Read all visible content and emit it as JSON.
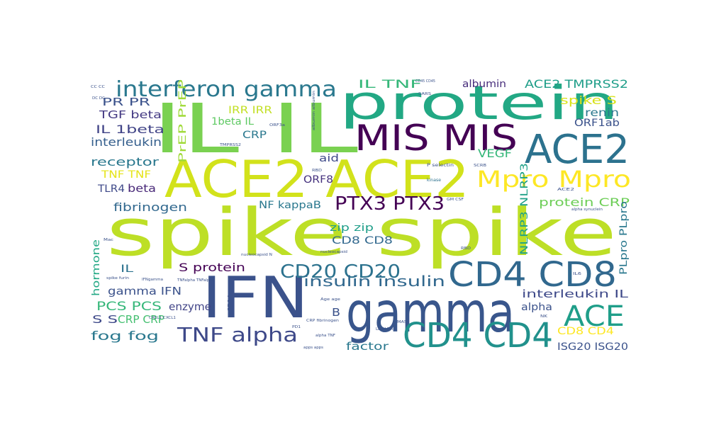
{
  "wordcloud": {
    "words": [
      {
        "text": "spike spike",
        "color": "#bddf26"
      },
      {
        "text": "IL IL",
        "color": "#7ad151"
      },
      {
        "text": "ACE2 ACE2",
        "color": "#d2e21b"
      },
      {
        "text": "protein",
        "color": "#22a884"
      },
      {
        "text": "gamma",
        "color": "#39568c"
      },
      {
        "text": "IFN",
        "color": "#3b528b"
      },
      {
        "text": "MIS MIS",
        "color": "#440154"
      },
      {
        "text": "ACE2",
        "color": "#2c728e"
      },
      {
        "text": "CD4 CD8",
        "color": "#31688e"
      },
      {
        "text": "CD4 CD4",
        "color": "#21918c"
      },
      {
        "text": "Mpro Mpro",
        "color": "#fde725"
      },
      {
        "text": "ACE",
        "color": "#1f9e89"
      },
      {
        "text": "interferon gamma",
        "color": "#2a788e"
      },
      {
        "text": "PTX3 PTX3",
        "color": "#440154"
      },
      {
        "text": "CD20 CD20",
        "color": "#2c728e"
      },
      {
        "text": "TNF alpha",
        "color": "#3e4989"
      },
      {
        "text": "insulin insulin",
        "color": "#31688e"
      },
      {
        "text": "albumin",
        "color": "#472d7b"
      },
      {
        "text": "ACE2 TMPRSS2",
        "color": "#1f9e89"
      },
      {
        "text": "IL TNF",
        "color": "#35b779"
      },
      {
        "text": "spike S",
        "color": "#d8e219"
      },
      {
        "text": "renin",
        "color": "#2a788e"
      },
      {
        "text": "ORF1ab",
        "color": "#3b528b"
      },
      {
        "text": "PR PR",
        "color": "#3b528b"
      },
      {
        "text": "TGF beta",
        "color": "#443a83"
      },
      {
        "text": "IL 1beta",
        "color": "#414487"
      },
      {
        "text": "interleukin",
        "color": "#355f8d"
      },
      {
        "text": "PrEP PrEP",
        "color": "#a0da39"
      },
      {
        "text": "1beta IL",
        "color": "#5ec962"
      },
      {
        "text": "IRR IRR",
        "color": "#c2df23"
      },
      {
        "text": "CRP",
        "color": "#2a788e"
      },
      {
        "text": "aid",
        "color": "#3e4989"
      },
      {
        "text": "VEGF",
        "color": "#35b779"
      },
      {
        "text": "receptor",
        "color": "#2a788e"
      },
      {
        "text": "TNF TNF",
        "color": "#e5e419"
      },
      {
        "text": "TLR4",
        "color": "#3e4989"
      },
      {
        "text": "beta",
        "color": "#482878"
      },
      {
        "text": "fibrinogen",
        "color": "#31688e"
      },
      {
        "text": "ORF8",
        "color": "#46327e"
      },
      {
        "text": "NF kappaB",
        "color": "#2a788e"
      },
      {
        "text": "NLRP3 NLRP3",
        "color": "#1fa188"
      },
      {
        "text": "protein CRP",
        "color": "#6ece58"
      },
      {
        "text": "zip zip",
        "color": "#1f9e89"
      },
      {
        "text": "CD8 CD8",
        "color": "#31688e"
      },
      {
        "text": "PLpro PLpro",
        "color": "#2a788e"
      },
      {
        "text": "hormone",
        "color": "#22a884"
      },
      {
        "text": "IL",
        "color": "#2c728e"
      },
      {
        "text": "S protein",
        "color": "#440154"
      },
      {
        "text": "gamma IFN",
        "color": "#3b528b"
      },
      {
        "text": "interleukin IL",
        "color": "#3e4989"
      },
      {
        "text": "PCS PCS",
        "color": "#35b779"
      },
      {
        "text": "enzyme",
        "color": "#414487"
      },
      {
        "text": "alpha",
        "color": "#3b528b"
      },
      {
        "text": "S S",
        "color": "#3e4989"
      },
      {
        "text": "CRP CRP",
        "color": "#44bf70"
      },
      {
        "text": "B",
        "color": "#3b528b"
      },
      {
        "text": "fog fog",
        "color": "#2a788e"
      },
      {
        "text": "factor",
        "color": "#2a788e"
      },
      {
        "text": "CD8 CD4",
        "color": "#fde725"
      },
      {
        "text": "ISG20 ISG20",
        "color": "#3b528b"
      },
      {
        "text": "P selectin",
        "color": "#3b528b"
      },
      {
        "text": "kinase",
        "color": "#2c728e"
      },
      {
        "text": "nucleocapsid",
        "color": "#3b528b"
      },
      {
        "text": "Age age",
        "color": "#3b528b"
      },
      {
        "text": "CRP fibrinogen",
        "color": "#3b528b"
      },
      {
        "text": "alpha TNF",
        "color": "#3b528b"
      },
      {
        "text": "apps apps",
        "color": "#3b528b"
      },
      {
        "text": "LDH LDH",
        "color": "#3b528b"
      },
      {
        "text": "nucleocapsid N",
        "color": "#3b528b"
      },
      {
        "text": "SARS",
        "color": "#3b528b"
      },
      {
        "text": "SCRB",
        "color": "#3b528b"
      },
      {
        "text": "RBD",
        "color": "#3b528b"
      },
      {
        "text": "CD45 CD45",
        "color": "#3b528b"
      },
      {
        "text": "GM CSF",
        "color": "#3b528b"
      },
      {
        "text": "TNFalpha TNFalpha",
        "color": "#3b528b"
      },
      {
        "text": "alpha synuclein",
        "color": "#3b528b"
      },
      {
        "text": "CXCL1 CXCL1",
        "color": "#3b528b"
      },
      {
        "text": "MAS",
        "color": "#3b528b"
      },
      {
        "text": "IFNgamma",
        "color": "#3b528b"
      },
      {
        "text": "NK",
        "color": "#3b528b"
      },
      {
        "text": "PD1",
        "color": "#3b528b"
      },
      {
        "text": "spike furin",
        "color": "#3b528b"
      },
      {
        "text": "CD14",
        "color": "#3b528b"
      },
      {
        "text": "albumin albumin",
        "color": "#3b528b"
      },
      {
        "text": "IL6",
        "color": "#3b528b"
      },
      {
        "text": "ACE2",
        "color": "#3b528b"
      },
      {
        "text": "CC CC",
        "color": "#3b528b"
      },
      {
        "text": "DC DC",
        "color": "#3b528b"
      },
      {
        "text": "ORF3a",
        "color": "#3b528b"
      },
      {
        "text": "TMPRSS2",
        "color": "#3b528b"
      },
      {
        "text": "Mac",
        "color": "#3b528b"
      },
      {
        "text": "RBD",
        "color": "#3b528b"
      }
    ]
  }
}
